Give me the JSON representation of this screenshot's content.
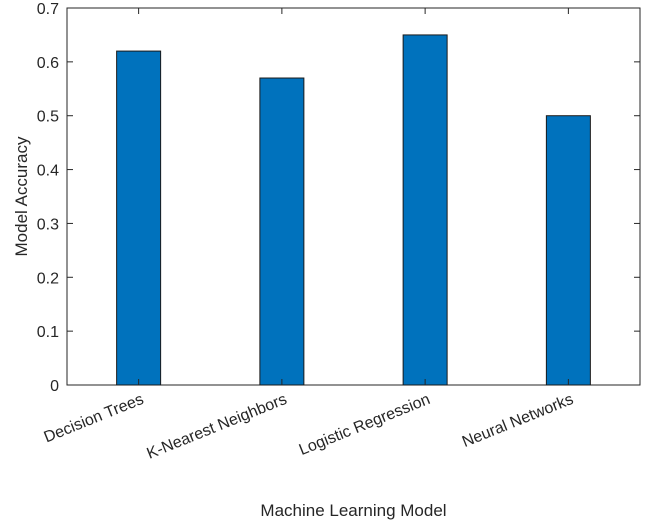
{
  "chart_data": {
    "type": "bar",
    "title": "",
    "xlabel": "Machine Learning Model",
    "ylabel": "Model Accuracy",
    "categories": [
      "Decision Trees",
      "K-Nearest Neighbors",
      "Logistic Regression",
      "Neural Networks"
    ],
    "values": [
      0.62,
      0.57,
      0.65,
      0.5
    ],
    "ylim": [
      0,
      0.7
    ],
    "yticks": [
      "0",
      "0.1",
      "0.2",
      "0.3",
      "0.4",
      "0.5",
      "0.6",
      "0.7"
    ],
    "grid": false,
    "bar_color": "#0072BD",
    "bar_edge_color": "#1a1a1a",
    "axis_color": "#262626"
  }
}
